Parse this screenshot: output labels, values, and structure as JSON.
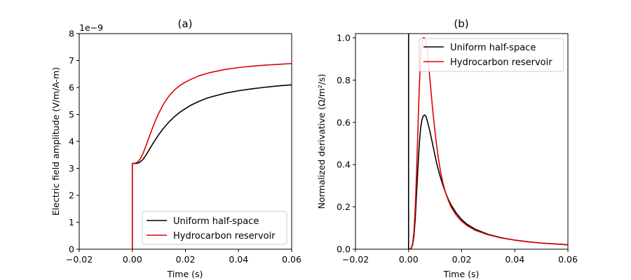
{
  "chart_data": [
    {
      "type": "line",
      "title": "(a)",
      "xlabel": "Time (s)",
      "ylabel": "Electric field amplitude (V/m/A-m)",
      "y_offset_label": "1e−9",
      "xlim": [
        -0.02,
        0.06
      ],
      "ylim": [
        0,
        8
      ],
      "x_ticks": [
        -0.02,
        0.0,
        0.02,
        0.04,
        0.06
      ],
      "x_tick_labels": [
        "−0.02",
        "0.00",
        "0.02",
        "0.04",
        "0.06"
      ],
      "y_ticks": [
        0,
        1,
        2,
        3,
        4,
        5,
        6,
        7,
        8
      ],
      "y_tick_labels": [
        "0",
        "1",
        "2",
        "3",
        "4",
        "5",
        "6",
        "7",
        "8"
      ],
      "grid": false,
      "legend_position": "bottom-right",
      "series": [
        {
          "name": "Uniform half-space",
          "color": "#000000",
          "x": [
            0.0,
            0.0,
            0.001,
            0.002,
            0.003,
            0.004,
            0.005,
            0.006,
            0.007,
            0.008,
            0.009,
            0.01,
            0.012,
            0.014,
            0.016,
            0.018,
            0.02,
            0.022,
            0.025,
            0.028,
            0.03,
            0.035,
            0.04,
            0.045,
            0.05,
            0.055,
            0.06
          ],
          "y": [
            0.0,
            3.18,
            3.18,
            3.19,
            3.24,
            3.33,
            3.47,
            3.63,
            3.8,
            3.96,
            4.11,
            4.26,
            4.52,
            4.74,
            4.93,
            5.09,
            5.22,
            5.34,
            5.48,
            5.6,
            5.66,
            5.79,
            5.88,
            5.95,
            6.01,
            6.06,
            6.1
          ]
        },
        {
          "name": "Hydrocarbon reservoir",
          "color": "#e00000",
          "x": [
            0.0,
            0.0,
            0.001,
            0.002,
            0.003,
            0.004,
            0.005,
            0.006,
            0.007,
            0.008,
            0.009,
            0.01,
            0.012,
            0.014,
            0.016,
            0.018,
            0.02,
            0.022,
            0.025,
            0.028,
            0.03,
            0.035,
            0.04,
            0.045,
            0.05,
            0.055,
            0.06
          ],
          "y": [
            0.0,
            3.18,
            3.19,
            3.23,
            3.35,
            3.55,
            3.8,
            4.07,
            4.34,
            4.6,
            4.84,
            5.06,
            5.43,
            5.71,
            5.92,
            6.08,
            6.2,
            6.3,
            6.43,
            6.52,
            6.57,
            6.67,
            6.74,
            6.79,
            6.83,
            6.86,
            6.89
          ]
        }
      ]
    },
    {
      "type": "line",
      "title": "(b)",
      "xlabel": "Time (s)",
      "ylabel": "Normalized derivative (Ω/m²/s)",
      "xlim": [
        -0.02,
        0.06
      ],
      "ylim": [
        0,
        1.02
      ],
      "x_ticks": [
        -0.02,
        0.0,
        0.02,
        0.04,
        0.06
      ],
      "x_tick_labels": [
        "−0.02",
        "0.00",
        "0.02",
        "0.04",
        "0.06"
      ],
      "y_ticks": [
        0.0,
        0.2,
        0.4,
        0.6,
        0.8,
        1.0
      ],
      "y_tick_labels": [
        "0.0",
        "0.2",
        "0.4",
        "0.6",
        "0.8",
        "1.0"
      ],
      "grid": false,
      "legend_position": "top-right",
      "series": [
        {
          "name": "Uniform half-space",
          "color": "#000000",
          "x": [
            0.0,
            0.0,
            0.0005,
            0.001,
            0.0015,
            0.002,
            0.0025,
            0.003,
            0.0035,
            0.004,
            0.0045,
            0.005,
            0.0055,
            0.006,
            0.0065,
            0.007,
            0.008,
            0.009,
            0.01,
            0.011,
            0.012,
            0.013,
            0.014,
            0.015,
            0.016,
            0.018,
            0.02,
            0.022,
            0.025,
            0.03,
            0.035,
            0.04,
            0.045,
            0.05,
            0.055,
            0.06
          ],
          "y": [
            1.02,
            0.0,
            0.001,
            0.005,
            0.02,
            0.06,
            0.14,
            0.26,
            0.38,
            0.49,
            0.57,
            0.61,
            0.63,
            0.635,
            0.63,
            0.61,
            0.56,
            0.5,
            0.44,
            0.385,
            0.34,
            0.3,
            0.265,
            0.235,
            0.21,
            0.17,
            0.14,
            0.118,
            0.095,
            0.07,
            0.054,
            0.043,
            0.035,
            0.029,
            0.025,
            0.021
          ]
        },
        {
          "name": "Hydrocarbon reservoir",
          "color": "#e00000",
          "x": [
            0.0,
            0.0005,
            0.001,
            0.0015,
            0.002,
            0.0025,
            0.003,
            0.0035,
            0.004,
            0.0045,
            0.005,
            0.0055,
            0.006,
            0.0065,
            0.007,
            0.0075,
            0.008,
            0.009,
            0.01,
            0.011,
            0.012,
            0.013,
            0.014,
            0.015,
            0.016,
            0.018,
            0.02,
            0.022,
            0.025,
            0.03,
            0.035,
            0.04,
            0.045,
            0.05,
            0.055,
            0.06
          ],
          "y": [
            0.0,
            0.001,
            0.006,
            0.025,
            0.08,
            0.19,
            0.36,
            0.56,
            0.75,
            0.9,
            0.97,
            1.0,
            1.0,
            0.98,
            0.94,
            0.88,
            0.81,
            0.67,
            0.55,
            0.45,
            0.37,
            0.31,
            0.265,
            0.23,
            0.2,
            0.16,
            0.132,
            0.112,
            0.09,
            0.068,
            0.053,
            0.043,
            0.035,
            0.029,
            0.025,
            0.021
          ]
        }
      ]
    }
  ]
}
